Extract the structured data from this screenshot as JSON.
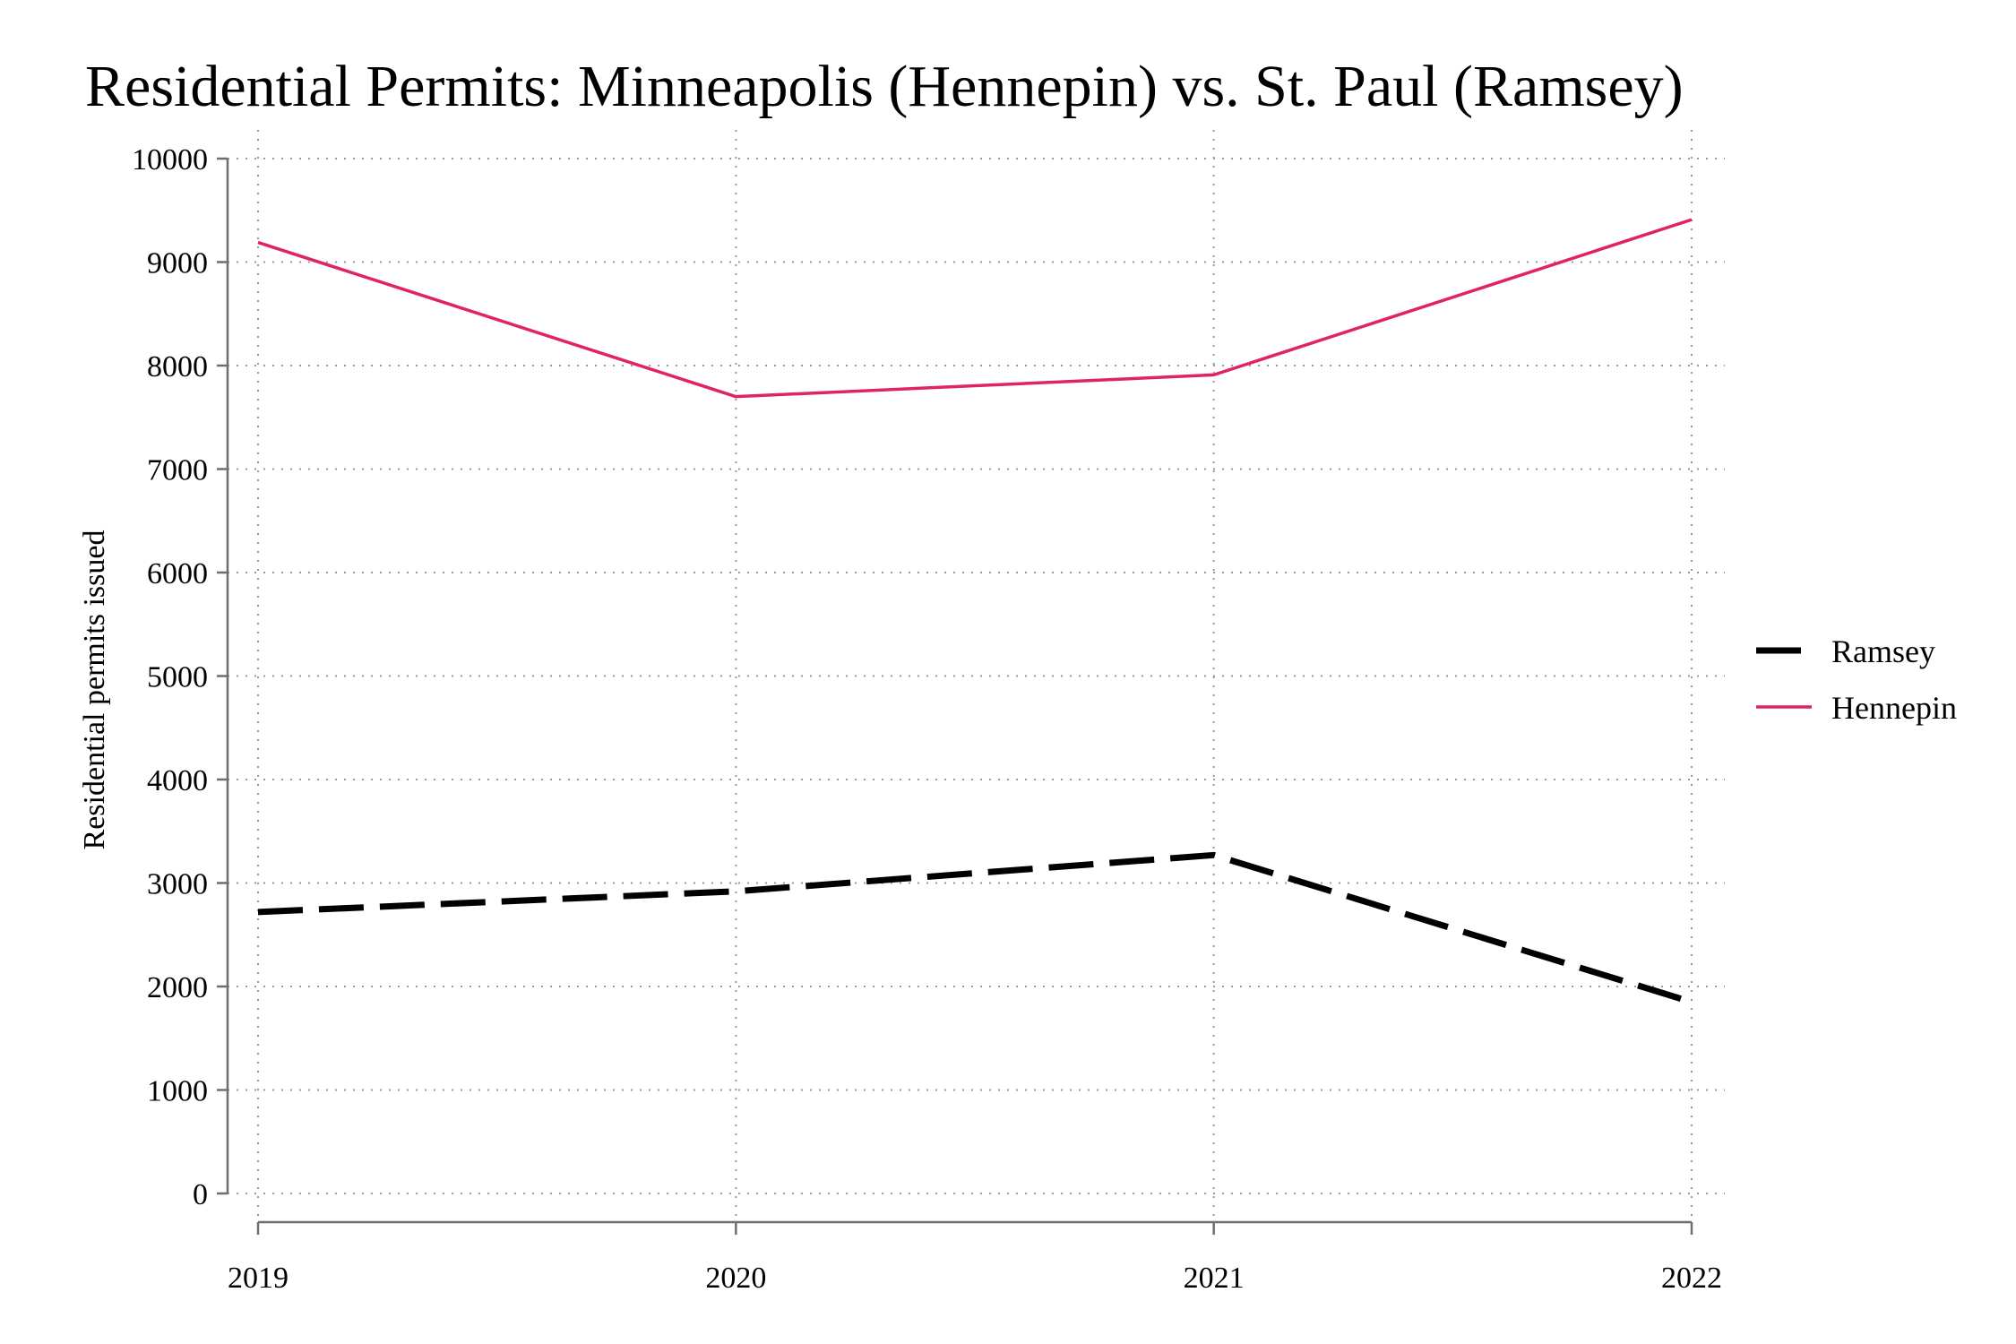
{
  "chart_data": {
    "type": "line",
    "title": "Residential Permits: Minneapolis (Hennepin) vs. St. Paul (Ramsey)",
    "xlabel": "",
    "ylabel": "Residential permits issued",
    "x": [
      "2019",
      "2020",
      "2021",
      "2022"
    ],
    "xlim": [
      2019,
      2022
    ],
    "ylim": [
      0,
      10000
    ],
    "yticks": [
      "0",
      "1000",
      "2000",
      "3000",
      "4000",
      "5000",
      "6000",
      "7000",
      "8000",
      "9000",
      "10000"
    ],
    "grid": true,
    "legend_position": "right",
    "series": [
      {
        "name": "Ramsey",
        "values": [
          2720,
          2920,
          3270,
          1850
        ],
        "color": "#000000",
        "style": "dashed"
      },
      {
        "name": "Hennepin",
        "values": [
          9190,
          7700,
          7910,
          9410
        ],
        "color": "#e0245e",
        "style": "solid"
      }
    ]
  }
}
